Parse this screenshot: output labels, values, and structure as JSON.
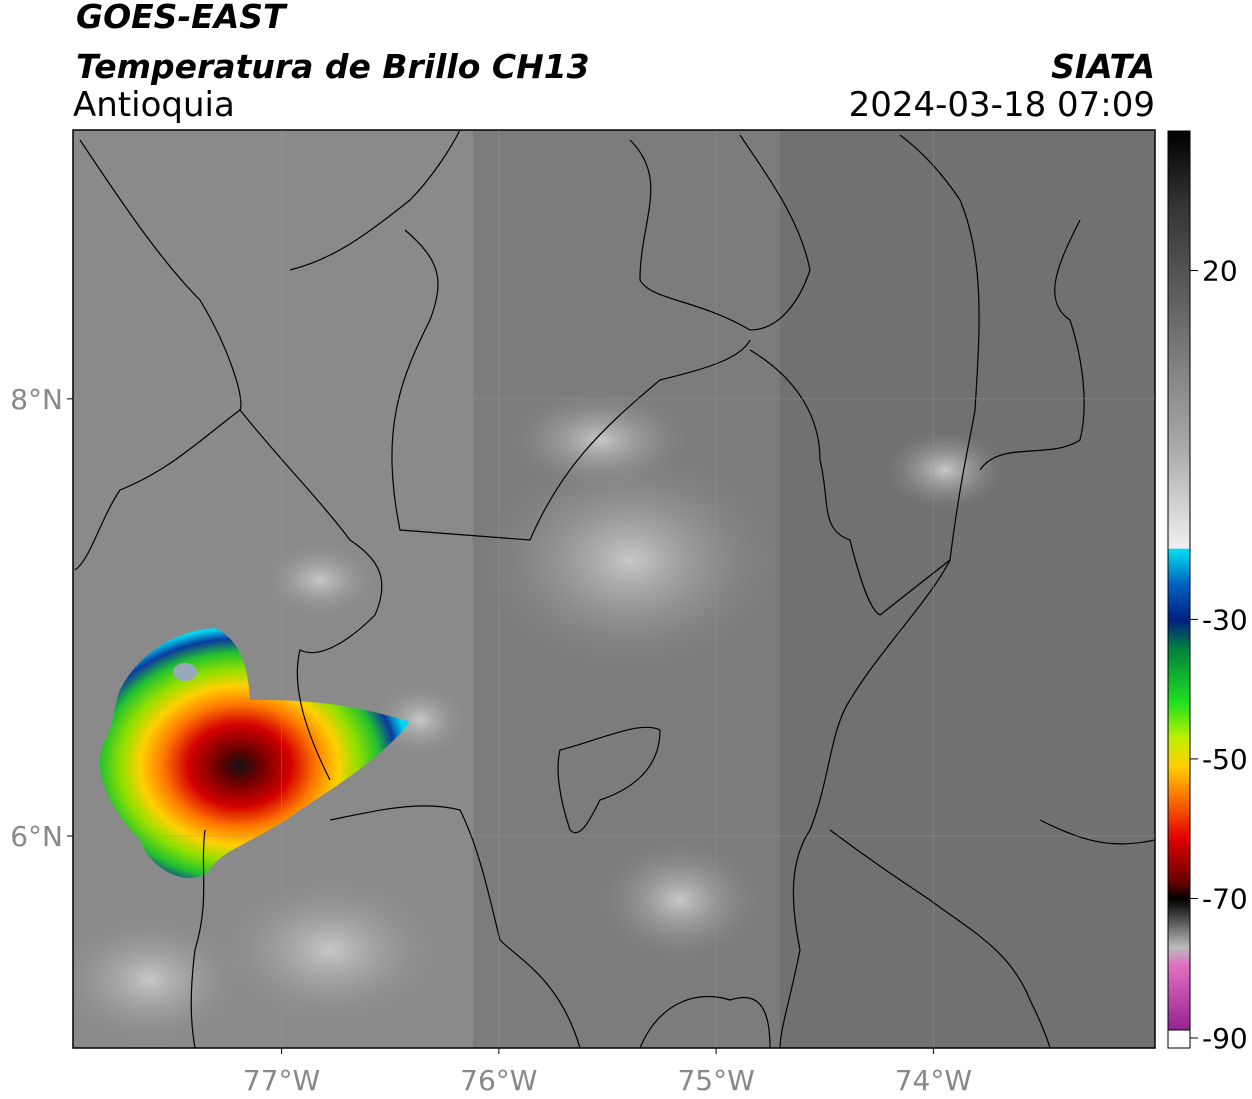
{
  "header": {
    "satellite": "GOES-EAST",
    "product": "Temperatura de Brillo CH13",
    "region": "Antioquia",
    "source": "SIATA",
    "datetime": "2024-03-18 07:09"
  },
  "map": {
    "lon_lim": [
      -77.96,
      -72.98
    ],
    "lat_lim": [
      5.03,
      9.23
    ],
    "lon_ticks": [
      {
        "value": -77,
        "label": "77°W"
      },
      {
        "value": -76,
        "label": "76°W"
      },
      {
        "value": -75,
        "label": "75°W"
      },
      {
        "value": -74,
        "label": "74°W"
      }
    ],
    "lat_ticks": [
      {
        "value": 8,
        "label": "8°N"
      },
      {
        "value": 6,
        "label": "6°N"
      }
    ]
  },
  "colorbar": {
    "lim": [
      -90,
      40
    ],
    "ticks": [
      20,
      -30,
      -50,
      -70,
      -90
    ]
  }
}
